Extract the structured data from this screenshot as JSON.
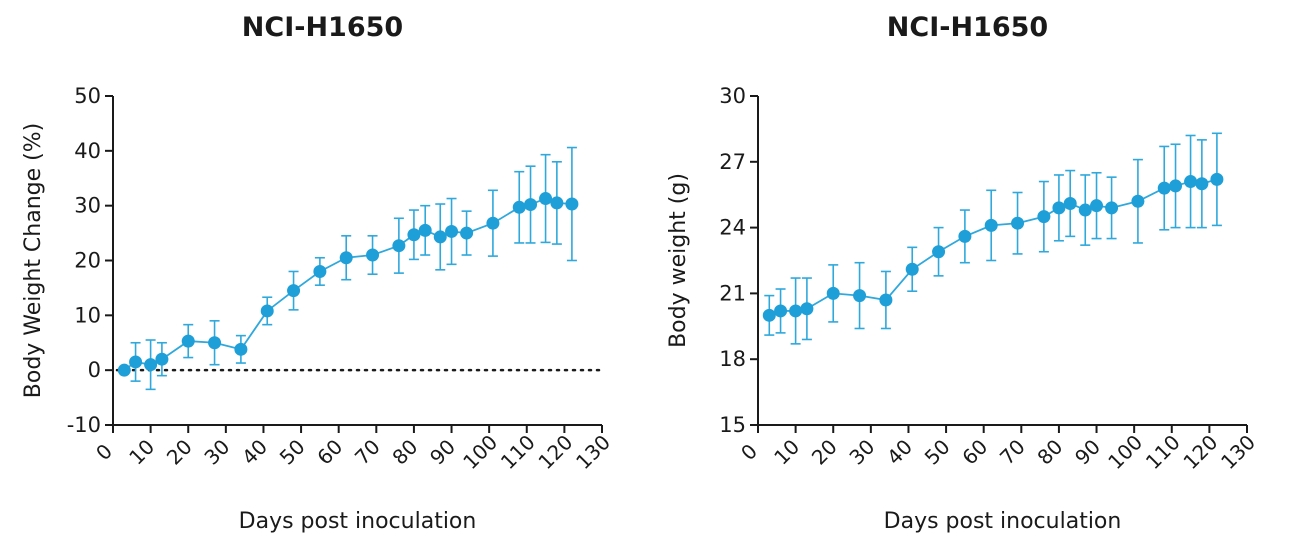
{
  "chart_data": [
    {
      "type": "line",
      "title": "NCI-H1650",
      "xlabel": "Days post inoculation",
      "ylabel": "Body Weight Change (%)",
      "xlim": [
        0,
        130
      ],
      "ylim": [
        -10,
        50
      ],
      "xticks": [
        "0",
        "10",
        "20",
        "30",
        "40",
        "50",
        "60",
        "70",
        "80",
        "90",
        "100",
        "110",
        "120",
        "130"
      ],
      "yticks": [
        "-10",
        "0",
        "10",
        "20",
        "30",
        "40",
        "50"
      ],
      "reference_line_y": 0,
      "color": "#1f9fd8",
      "series": [
        {
          "x": [
            3,
            6,
            10,
            13,
            20,
            27,
            34,
            41,
            48,
            55,
            62,
            69,
            76,
            80,
            83,
            87,
            90,
            94,
            101,
            108,
            111,
            115,
            118,
            122
          ],
          "y": [
            0,
            1.5,
            1,
            2,
            5.3,
            5,
            3.8,
            10.8,
            14.5,
            18,
            20.5,
            21,
            22.7,
            24.7,
            25.5,
            24.3,
            25.3,
            25,
            26.8,
            29.7,
            30.2,
            31.3,
            30.5,
            30.3
          ],
          "err": [
            0,
            3.5,
            4.5,
            3,
            3,
            4,
            2.5,
            2.5,
            3.5,
            2.5,
            4,
            3.5,
            5,
            4.5,
            4.5,
            6,
            6,
            4,
            6,
            6.5,
            7,
            8,
            7.5,
            10.3
          ]
        }
      ]
    },
    {
      "type": "line",
      "title": "NCI-H1650",
      "xlabel": "Days post inoculation",
      "ylabel": "Body weight (g)",
      "xlim": [
        0,
        130
      ],
      "ylim": [
        15,
        30
      ],
      "xticks": [
        "0",
        "10",
        "20",
        "30",
        "40",
        "50",
        "60",
        "70",
        "80",
        "90",
        "100",
        "110",
        "120",
        "130"
      ],
      "yticks": [
        "15",
        "18",
        "21",
        "24",
        "27",
        "30"
      ],
      "color": "#1f9fd8",
      "series": [
        {
          "x": [
            3,
            6,
            10,
            13,
            20,
            27,
            34,
            41,
            48,
            55,
            62,
            69,
            76,
            80,
            83,
            87,
            90,
            94,
            101,
            108,
            111,
            115,
            118,
            122
          ],
          "y": [
            20,
            20.2,
            20.2,
            20.3,
            21,
            20.9,
            20.7,
            22.1,
            22.9,
            23.6,
            24.1,
            24.2,
            24.5,
            24.9,
            25.1,
            24.8,
            25,
            24.9,
            25.2,
            25.8,
            25.9,
            26.1,
            26,
            26.2
          ],
          "err": [
            0.9,
            1,
            1.5,
            1.4,
            1.3,
            1.5,
            1.3,
            1,
            1.1,
            1.2,
            1.6,
            1.4,
            1.6,
            1.5,
            1.5,
            1.6,
            1.5,
            1.4,
            1.9,
            1.9,
            1.9,
            2.1,
            2,
            2.1
          ]
        }
      ]
    }
  ]
}
